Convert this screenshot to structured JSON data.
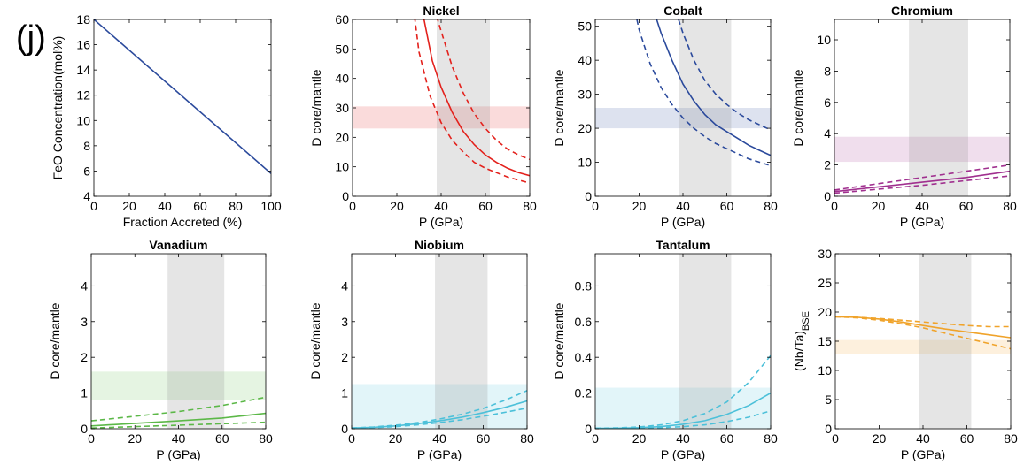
{
  "figure": {
    "panel_label": "(j)"
  },
  "chart_data": [
    {
      "type": "line",
      "title": "",
      "xlabel": "Fraction Accreted (%)",
      "ylabel": "FeO Concentration(mol%)",
      "xlim": [
        0,
        100
      ],
      "ylim": [
        4,
        18
      ],
      "xticks": [
        0,
        20,
        40,
        60,
        80,
        100
      ],
      "yticks": [
        4,
        6,
        8,
        10,
        12,
        14,
        16,
        18
      ],
      "grid": false,
      "color": "#2b4a9c",
      "series": [
        {
          "style": "solid",
          "x": [
            0,
            100
          ],
          "y": [
            18,
            5.8
          ]
        }
      ]
    },
    {
      "type": "line",
      "title": "Nickel",
      "xlabel": "P (GPa)",
      "ylabel": "D core/mantle",
      "xlim": [
        0,
        80
      ],
      "ylim": [
        0,
        60
      ],
      "xticks": [
        0,
        20,
        40,
        60,
        80
      ],
      "yticks": [
        0,
        10,
        20,
        30,
        40,
        50,
        60
      ],
      "grid": false,
      "color": "#e3211c",
      "gray_band_x": [
        38,
        62
      ],
      "target_band_y": [
        23,
        30.5
      ],
      "series": [
        {
          "style": "solid",
          "x": [
            32,
            36,
            40,
            45,
            50,
            55,
            60,
            65,
            70,
            75,
            80
          ],
          "y": [
            61,
            46,
            37,
            28.5,
            22,
            17.5,
            14,
            11.5,
            9.5,
            8,
            7
          ]
        },
        {
          "style": "dashed",
          "x": [
            38,
            40,
            45,
            50,
            55,
            60,
            65,
            70,
            75,
            80
          ],
          "y": [
            61,
            56,
            44,
            35,
            28,
            23,
            19,
            16,
            14,
            12.5
          ]
        },
        {
          "style": "dashed",
          "x": [
            28,
            30,
            35,
            40,
            45,
            50,
            55,
            60,
            65,
            70,
            75,
            80
          ],
          "y": [
            61,
            49,
            34,
            25,
            19,
            15,
            11.5,
            9.5,
            8,
            6.5,
            5.5,
            4.5
          ]
        }
      ]
    },
    {
      "type": "line",
      "title": "Cobalt",
      "xlabel": "P (GPa)",
      "ylabel": "D core/mantle",
      "xlim": [
        0,
        80
      ],
      "ylim": [
        0,
        52
      ],
      "xticks": [
        0,
        20,
        40,
        60,
        80
      ],
      "yticks": [
        0,
        10,
        20,
        30,
        40,
        50
      ],
      "grid": false,
      "color": "#2b4a9c",
      "gray_band_x": [
        38,
        62
      ],
      "target_band_y": [
        20,
        26
      ],
      "series": [
        {
          "style": "solid",
          "x": [
            28,
            30,
            35,
            40,
            45,
            50,
            55,
            60,
            65,
            70,
            75,
            80
          ],
          "y": [
            52,
            48,
            40,
            33,
            28,
            24,
            21,
            19,
            17,
            15,
            13.5,
            12
          ]
        },
        {
          "style": "dashed",
          "x": [
            38,
            40,
            45,
            50,
            55,
            60,
            65,
            70,
            75,
            80
          ],
          "y": [
            52,
            48,
            40,
            34,
            30,
            27,
            24.5,
            22.5,
            21,
            19.5
          ]
        },
        {
          "style": "dashed",
          "x": [
            19,
            20,
            25,
            30,
            35,
            40,
            45,
            50,
            55,
            60,
            65,
            70,
            75,
            80
          ],
          "y": [
            52,
            49,
            39,
            32,
            27,
            23,
            20,
            17.5,
            15.5,
            14,
            12.5,
            11,
            10,
            9
          ]
        }
      ]
    },
    {
      "type": "line",
      "title": "Chromium",
      "xlabel": "P (GPa)",
      "ylabel": "D core/mantle",
      "xlim": [
        0,
        80
      ],
      "ylim": [
        0,
        11.3
      ],
      "xticks": [
        0,
        20,
        40,
        60,
        80
      ],
      "yticks": [
        0,
        2,
        4,
        6,
        8,
        10
      ],
      "grid": false,
      "color": "#a0308f",
      "gray_band_x": [
        34,
        61
      ],
      "target_band_y": [
        2.2,
        3.8
      ],
      "series": [
        {
          "style": "solid",
          "x": [
            0,
            20,
            40,
            60,
            80
          ],
          "y": [
            0.3,
            0.6,
            0.9,
            1.2,
            1.6
          ]
        },
        {
          "style": "dashed",
          "x": [
            0,
            20,
            40,
            60,
            80
          ],
          "y": [
            0.4,
            0.8,
            1.2,
            1.6,
            2.0
          ]
        },
        {
          "style": "dashed",
          "x": [
            0,
            20,
            40,
            60,
            80
          ],
          "y": [
            0.2,
            0.45,
            0.7,
            1.0,
            1.3
          ]
        }
      ]
    },
    {
      "type": "line",
      "title": "Vanadium",
      "xlabel": "P (GPa)",
      "ylabel": "D core/mantle",
      "xlim": [
        0,
        80
      ],
      "ylim": [
        0,
        4.9
      ],
      "xticks": [
        0,
        20,
        40,
        60,
        80
      ],
      "yticks": [
        0,
        1,
        2,
        3,
        4
      ],
      "grid": false,
      "color": "#5cb848",
      "gray_band_x": [
        35,
        61
      ],
      "target_band_y": [
        0.8,
        1.6
      ],
      "series": [
        {
          "style": "solid",
          "x": [
            0,
            20,
            40,
            60,
            80
          ],
          "y": [
            0.08,
            0.15,
            0.22,
            0.3,
            0.43
          ]
        },
        {
          "style": "dashed",
          "x": [
            0,
            20,
            40,
            60,
            80
          ],
          "y": [
            0.22,
            0.35,
            0.48,
            0.65,
            0.88
          ]
        },
        {
          "style": "dashed",
          "x": [
            0,
            20,
            40,
            60,
            80
          ],
          "y": [
            0.02,
            0.06,
            0.1,
            0.14,
            0.18
          ]
        }
      ]
    },
    {
      "type": "line",
      "title": "Niobium",
      "xlabel": "P (GPa)",
      "ylabel": "D core/mantle",
      "xlim": [
        0,
        80
      ],
      "ylim": [
        0,
        4.9
      ],
      "xticks": [
        0,
        20,
        40,
        60,
        80
      ],
      "yticks": [
        0,
        1,
        2,
        3,
        4
      ],
      "grid": false,
      "color": "#4cc0d9",
      "gray_band_x": [
        38,
        62
      ],
      "target_band_y": [
        0,
        1.25
      ],
      "series": [
        {
          "style": "solid",
          "x": [
            0,
            10,
            20,
            30,
            40,
            50,
            60,
            70,
            80
          ],
          "y": [
            0.02,
            0.04,
            0.08,
            0.14,
            0.22,
            0.32,
            0.45,
            0.6,
            0.78
          ]
        },
        {
          "style": "dashed",
          "x": [
            0,
            10,
            20,
            30,
            40,
            50,
            60,
            70,
            80
          ],
          "y": [
            0.02,
            0.05,
            0.1,
            0.17,
            0.27,
            0.4,
            0.57,
            0.8,
            1.07
          ]
        },
        {
          "style": "dashed",
          "x": [
            0,
            10,
            20,
            30,
            40,
            50,
            60,
            70,
            80
          ],
          "y": [
            0.01,
            0.03,
            0.06,
            0.11,
            0.17,
            0.25,
            0.35,
            0.46,
            0.58
          ]
        }
      ]
    },
    {
      "type": "line",
      "title": "Tantalum",
      "xlabel": "P (GPa)",
      "ylabel": "D core/mantle",
      "xlim": [
        0,
        80
      ],
      "ylim": [
        0,
        0.98
      ],
      "xticks": [
        0,
        20,
        40,
        60,
        80
      ],
      "yticks": [
        0,
        0.2,
        0.4,
        0.6,
        0.8
      ],
      "grid": false,
      "color": "#4cc0d9",
      "gray_band_x": [
        38,
        62
      ],
      "target_band_y": [
        0,
        0.23
      ],
      "series": [
        {
          "style": "solid",
          "x": [
            0,
            10,
            20,
            30,
            40,
            50,
            60,
            70,
            80
          ],
          "y": [
            0.002,
            0.003,
            0.006,
            0.012,
            0.025,
            0.045,
            0.08,
            0.13,
            0.2
          ]
        },
        {
          "style": "dashed",
          "x": [
            0,
            10,
            20,
            30,
            40,
            50,
            60,
            70,
            80
          ],
          "y": [
            0.003,
            0.005,
            0.01,
            0.022,
            0.045,
            0.085,
            0.15,
            0.26,
            0.41
          ]
        },
        {
          "style": "dashed",
          "x": [
            0,
            10,
            20,
            30,
            40,
            50,
            60,
            70,
            80
          ],
          "y": [
            0.001,
            0.002,
            0.003,
            0.006,
            0.012,
            0.022,
            0.04,
            0.065,
            0.1
          ]
        }
      ]
    },
    {
      "type": "line",
      "title": "",
      "xlabel": "P (GPa)",
      "ylabel": "(Nb/Ta)",
      "ylabel_subscript": "BSE",
      "xlim": [
        0,
        80
      ],
      "ylim": [
        0,
        30
      ],
      "xticks": [
        0,
        20,
        40,
        60,
        80
      ],
      "yticks": [
        0,
        5,
        10,
        15,
        20,
        25,
        30
      ],
      "grid": false,
      "color": "#f0a32a",
      "gray_band_x": [
        38,
        62
      ],
      "target_band_y": [
        12.8,
        15.2
      ],
      "series": [
        {
          "style": "solid",
          "x": [
            0,
            10,
            20,
            30,
            40,
            50,
            60,
            70,
            80
          ],
          "y": [
            19.2,
            19.1,
            18.8,
            18.3,
            17.7,
            17.1,
            16.6,
            16.1,
            15.6
          ]
        },
        {
          "style": "dashed",
          "x": [
            0,
            10,
            20,
            30,
            40,
            50,
            60,
            70,
            80
          ],
          "y": [
            19.2,
            19.1,
            18.9,
            18.6,
            18.3,
            18.0,
            17.7,
            17.5,
            17.5
          ]
        },
        {
          "style": "dashed",
          "x": [
            0,
            10,
            20,
            30,
            40,
            50,
            60,
            70,
            80
          ],
          "y": [
            19.2,
            19.0,
            18.6,
            18.0,
            17.3,
            16.4,
            15.5,
            14.6,
            13.7
          ]
        }
      ]
    }
  ]
}
